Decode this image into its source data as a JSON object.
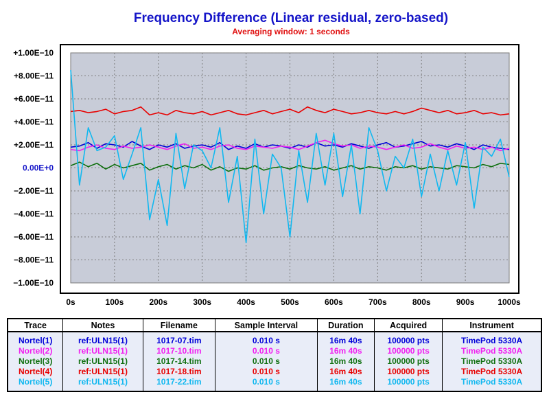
{
  "chart_data": {
    "type": "line",
    "title": "Frequency Difference (Linear residual, zero-based)",
    "subtitle": "Averaging window: 1 seconds",
    "xlabel": "",
    "ylabel": "",
    "xlim": [
      0,
      1000
    ],
    "ylim": [
      -1e-10,
      1e-10
    ],
    "x_ticks": [
      0,
      100,
      200,
      300,
      400,
      500,
      600,
      700,
      800,
      900,
      1000
    ],
    "x_tick_labels": [
      "0s",
      "100s",
      "200s",
      "300s",
      "400s",
      "500s",
      "600s",
      "700s",
      "800s",
      "900s",
      "1000s"
    ],
    "y_ticks": [
      1e-10,
      8e-11,
      6e-11,
      4e-11,
      2e-11,
      0,
      -2e-11,
      -4e-11,
      -6e-11,
      -8e-11,
      -1e-10
    ],
    "y_tick_labels": [
      "+1.00E−10",
      "+8.00E−11",
      "+6.00E−11",
      "+4.00E−11",
      "+2.00E−11",
      "0.00E+0",
      "−2.00E−11",
      "−4.00E−11",
      "−6.00E−11",
      "−8.00E−11",
      "−1.00E−10"
    ],
    "grid": true,
    "plot_background": "#c8ccd8",
    "x": [
      0,
      20,
      40,
      60,
      80,
      100,
      120,
      140,
      160,
      180,
      200,
      220,
      240,
      260,
      280,
      300,
      320,
      340,
      360,
      380,
      400,
      420,
      440,
      460,
      480,
      500,
      520,
      540,
      560,
      580,
      600,
      620,
      640,
      660,
      680,
      700,
      720,
      740,
      760,
      780,
      800,
      820,
      840,
      860,
      880,
      900,
      920,
      940,
      960,
      980,
      1000
    ],
    "series": [
      {
        "name": "Nortel(1)",
        "color": "#0000d8",
        "values": [
          1.8e-11,
          1.9e-11,
          2.2e-11,
          1.7e-11,
          2.1e-11,
          2e-11,
          1.8e-11,
          2.3e-11,
          1.9e-11,
          1.6e-11,
          2e-11,
          1.8e-11,
          2.1e-11,
          1.7e-11,
          1.9e-11,
          2e-11,
          1.8e-11,
          2.2e-11,
          1.6e-11,
          1.9e-11,
          1.7e-11,
          2.1e-11,
          1.8e-11,
          2e-11,
          1.9e-11,
          1.7e-11,
          2e-11,
          1.8e-11,
          2.2e-11,
          1.9e-11,
          2e-11,
          1.8e-11,
          2.1e-11,
          1.9e-11,
          1.7e-11,
          2e-11,
          2.2e-11,
          1.8e-11,
          1.9e-11,
          2.1e-11,
          2.3e-11,
          1.9e-11,
          2e-11,
          1.8e-11,
          2.1e-11,
          1.9e-11,
          1.6e-11,
          2e-11,
          1.8e-11,
          1.7e-11,
          1.6e-11
        ]
      },
      {
        "name": "Nortel(2)",
        "color": "#f020f0",
        "values": [
          1.6e-11,
          1.5e-11,
          1.8e-11,
          2e-11,
          1.7e-11,
          1.6e-11,
          1.9e-11,
          1.7e-11,
          1.8e-11,
          2e-11,
          1.8e-11,
          1.6e-11,
          1.9e-11,
          2.1e-11,
          1.7e-11,
          1.8e-11,
          1.6e-11,
          1.9e-11,
          2e-11,
          1.7e-11,
          1.6e-11,
          1.9e-11,
          1.8e-11,
          1.7e-11,
          1.9e-11,
          1.8e-11,
          1.6e-11,
          1.9e-11,
          2.2e-11,
          2.4e-11,
          2.1e-11,
          1.9e-11,
          2e-11,
          1.7e-11,
          1.9e-11,
          1.8e-11,
          1.6e-11,
          1.8e-11,
          2e-11,
          1.7e-11,
          1.8e-11,
          2.1e-11,
          1.8e-11,
          1.6e-11,
          1.9e-11,
          1.7e-11,
          1.8e-11,
          1.6e-11,
          1.8e-11,
          1.5e-11,
          1.7e-11
        ]
      },
      {
        "name": "Nortel(3)",
        "color": "#107010",
        "values": [
          2e-12,
          5e-12,
          1e-12,
          4e-12,
          -1e-12,
          3e-12,
          0.0,
          2e-12,
          4e-12,
          -2e-12,
          1e-12,
          3e-12,
          -1e-12,
          2e-12,
          0.0,
          3e-12,
          -2e-12,
          1e-12,
          -3e-12,
          0.0,
          -1e-12,
          2e-12,
          -2e-12,
          0.0,
          1e-12,
          -1e-12,
          2e-12,
          0.0,
          -1e-12,
          1e-12,
          -2e-12,
          0.0,
          2e-12,
          -1e-12,
          1e-12,
          0.0,
          -2e-12,
          1e-12,
          0.0,
          2e-12,
          -1e-12,
          1e-12,
          0.0,
          -1e-12,
          2e-12,
          1e-12,
          0.0,
          3e-12,
          1e-12,
          4e-12,
          3e-12
        ]
      },
      {
        "name": "Nortel(4)",
        "color": "#e80000",
        "values": [
          4.9e-11,
          5e-11,
          4.8e-11,
          4.9e-11,
          5.1e-11,
          4.7e-11,
          4.9e-11,
          5e-11,
          5.3e-11,
          4.6e-11,
          4.8e-11,
          4.6e-11,
          5e-11,
          4.8e-11,
          4.7e-11,
          4.9e-11,
          4.6e-11,
          4.8e-11,
          5e-11,
          4.7e-11,
          4.6e-11,
          4.8e-11,
          5e-11,
          4.7e-11,
          4.9e-11,
          5.1e-11,
          4.8e-11,
          5.3e-11,
          5e-11,
          4.8e-11,
          5.1e-11,
          4.9e-11,
          4.7e-11,
          4.8e-11,
          5e-11,
          4.8e-11,
          4.7e-11,
          4.9e-11,
          4.7e-11,
          4.9e-11,
          5.2e-11,
          5e-11,
          4.8e-11,
          5e-11,
          4.7e-11,
          4.8e-11,
          5e-11,
          4.7e-11,
          4.8e-11,
          4.6e-11,
          4.7e-11
        ]
      },
      {
        "name": "Nortel(5)",
        "color": "#10b8f0",
        "values": [
          8.5e-11,
          -1.5e-11,
          3.5e-11,
          1.5e-11,
          1.8e-11,
          2.8e-11,
          -1e-11,
          1.2e-11,
          3.5e-11,
          -4.5e-11,
          -1e-11,
          -5e-11,
          3e-11,
          -1.8e-11,
          2e-11,
          1.5e-11,
          0.0,
          3.5e-11,
          -3e-11,
          1e-11,
          -6.5e-11,
          2.5e-11,
          -4e-11,
          1.2e-11,
          0.0,
          -6e-11,
          1.5e-11,
          -3e-11,
          3e-11,
          -1.5e-11,
          3e-11,
          -2.5e-11,
          2e-11,
          -4e-11,
          3.5e-11,
          1.5e-11,
          -2e-11,
          1e-11,
          0.0,
          2.5e-11,
          -2.5e-11,
          1.2e-11,
          -2e-11,
          1.5e-11,
          -1.5e-11,
          2.2e-11,
          -3.5e-11,
          1.8e-11,
          1e-11,
          2.5e-11,
          -8e-12
        ]
      }
    ]
  },
  "legend_table": {
    "headers": {
      "trace": "Trace",
      "notes": "Notes",
      "filename": "Filename",
      "interval": "Sample Interval",
      "duration": "Duration",
      "acquired": "Acquired",
      "instrument": "Instrument"
    },
    "rows": [
      {
        "trace": "Nortel(1)",
        "notes": "ref:ULN15(1)",
        "filename": "1017-07.tim",
        "interval": "0.010 s",
        "duration": "16m 40s",
        "acquired": "100000 pts",
        "instrument": "TimePod 5330A",
        "color": "#0000d8"
      },
      {
        "trace": "Nortel(2)",
        "notes": "ref:ULN15(1)",
        "filename": "1017-10.tim",
        "interval": "0.010 s",
        "duration": "16m 40s",
        "acquired": "100000 pts",
        "instrument": "TimePod 5330A",
        "color": "#f020f0"
      },
      {
        "trace": "Nortel(3)",
        "notes": "ref:ULN15(1)",
        "filename": "1017-14.tim",
        "interval": "0.010 s",
        "duration": "16m 40s",
        "acquired": "100000 pts",
        "instrument": "TimePod 5330A",
        "color": "#107010"
      },
      {
        "trace": "Nortel(4)",
        "notes": "ref:ULN15(1)",
        "filename": "1017-18.tim",
        "interval": "0.010 s",
        "duration": "16m 40s",
        "acquired": "100000 pts",
        "instrument": "TimePod 5330A",
        "color": "#e80000"
      },
      {
        "trace": "Nortel(5)",
        "notes": "ref:ULN15(1)",
        "filename": "1017-22.tim",
        "interval": "0.010 s",
        "duration": "16m 40s",
        "acquired": "100000 pts",
        "instrument": "TimePod 5330A",
        "color": "#10b8f0"
      }
    ]
  }
}
